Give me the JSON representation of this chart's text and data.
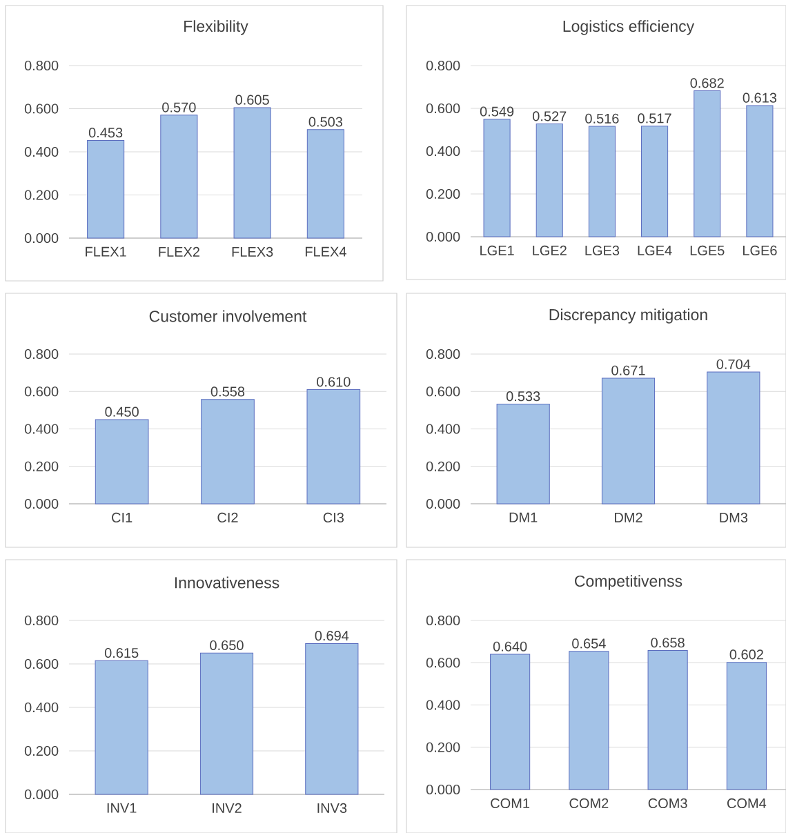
{
  "chart_data": [
    {
      "type": "bar",
      "title": "Flexibility",
      "categories": [
        "FLEX1",
        "FLEX2",
        "FLEX3",
        "FLEX4"
      ],
      "values": [
        0.453,
        0.57,
        0.605,
        0.503
      ],
      "value_labels": [
        "0.453",
        "0.570",
        "0.605",
        "0.503"
      ],
      "color": "#a3c2e7",
      "ylim": [
        0,
        0.8
      ],
      "yticks": [
        {
          "value": 0,
          "label": "0.000"
        },
        {
          "value": 0.2,
          "label": "0.200"
        },
        {
          "value": 0.4,
          "label": "0.400"
        },
        {
          "value": 0.6,
          "label": "0.600"
        },
        {
          "value": 0.8,
          "label": "0.800"
        }
      ],
      "grid": "y"
    },
    {
      "type": "bar",
      "title": "Logistics efficiency",
      "categories": [
        "LGE1",
        "LGE2",
        "LGE3",
        "LGE4",
        "LGE5",
        "LGE6"
      ],
      "values": [
        0.549,
        0.527,
        0.516,
        0.517,
        0.682,
        0.613
      ],
      "value_labels": [
        "0.549",
        "0.527",
        "0.516",
        "0.517",
        "0.682",
        "0.613"
      ],
      "color": "#a3c2e7",
      "ylim": [
        0,
        0.8
      ],
      "yticks": [
        {
          "value": 0,
          "label": "0.000"
        },
        {
          "value": 0.2,
          "label": "0.200"
        },
        {
          "value": 0.4,
          "label": "0.400"
        },
        {
          "value": 0.6,
          "label": "0.600"
        },
        {
          "value": 0.8,
          "label": "0.800"
        }
      ],
      "grid": "y"
    },
    {
      "type": "bar",
      "title": "Customer involvement",
      "categories": [
        "CI1",
        "CI2",
        "CI3"
      ],
      "values": [
        0.45,
        0.558,
        0.61
      ],
      "value_labels": [
        "0.450",
        "0.558",
        "0.610"
      ],
      "color": "#a3c2e7",
      "ylim": [
        0,
        0.8
      ],
      "yticks": [
        {
          "value": 0,
          "label": "0.000"
        },
        {
          "value": 0.2,
          "label": "0.200"
        },
        {
          "value": 0.4,
          "label": "0.400"
        },
        {
          "value": 0.6,
          "label": "0.600"
        },
        {
          "value": 0.8,
          "label": "0.800"
        }
      ],
      "grid": "y"
    },
    {
      "type": "bar",
      "title": "Discrepancy mitigation",
      "categories": [
        "DM1",
        "DM2",
        "DM3"
      ],
      "values": [
        0.533,
        0.671,
        0.704
      ],
      "value_labels": [
        "0.533",
        "0.671",
        "0.704"
      ],
      "color": "#a3c2e7",
      "ylim": [
        0,
        0.8
      ],
      "yticks": [
        {
          "value": 0,
          "label": "0.000"
        },
        {
          "value": 0.2,
          "label": "0.200"
        },
        {
          "value": 0.4,
          "label": "0.400"
        },
        {
          "value": 0.6,
          "label": "0.600"
        },
        {
          "value": 0.8,
          "label": "0.800"
        }
      ],
      "grid": "y"
    },
    {
      "type": "bar",
      "title": "Innovativeness",
      "categories": [
        "INV1",
        "INV2",
        "INV3"
      ],
      "values": [
        0.615,
        0.65,
        0.694
      ],
      "value_labels": [
        "0.615",
        "0.650",
        "0.694"
      ],
      "color": "#a3c2e7",
      "ylim": [
        0,
        0.8
      ],
      "yticks": [
        {
          "value": 0,
          "label": "0.000"
        },
        {
          "value": 0.2,
          "label": "0.200"
        },
        {
          "value": 0.4,
          "label": "0.400"
        },
        {
          "value": 0.6,
          "label": "0.600"
        },
        {
          "value": 0.8,
          "label": "0.800"
        }
      ],
      "grid": "y"
    },
    {
      "type": "bar",
      "title": "Competitivenss",
      "categories": [
        "COM1",
        "COM2",
        "COM3",
        "COM4"
      ],
      "values": [
        0.64,
        0.654,
        0.658,
        0.602
      ],
      "value_labels": [
        "0.640",
        "0.654",
        "0.658",
        "0.602"
      ],
      "color": "#a3c2e7",
      "ylim": [
        0,
        0.8
      ],
      "yticks": [
        {
          "value": 0,
          "label": "0.000"
        },
        {
          "value": 0.2,
          "label": "0.200"
        },
        {
          "value": 0.4,
          "label": "0.400"
        },
        {
          "value": 0.6,
          "label": "0.600"
        },
        {
          "value": 0.8,
          "label": "0.800"
        }
      ],
      "grid": "y"
    }
  ]
}
